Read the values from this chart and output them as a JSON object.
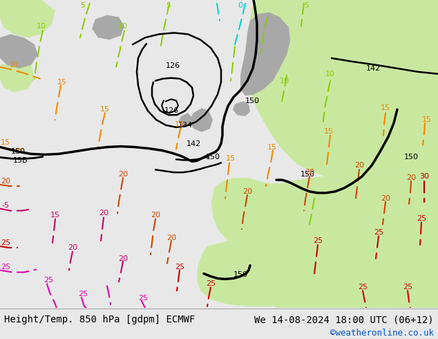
{
  "title_left": "Height/Temp. 850 hPa [gdpm] ECMWF",
  "title_right": "We 14-08-2024 18:00 UTC (06+12)",
  "credit": "©weatheronline.co.uk",
  "label_fontsize": 10,
  "credit_fontsize": 9,
  "credit_color": "#0055cc",
  "bg_color": "#e8e8e8",
  "map_bg": "#d8d8d8",
  "green_light": "#c8e8a0",
  "green_mid": "#b0d880",
  "gray_land": "#aaaaaa",
  "gray_sea": "#c8c8c8"
}
